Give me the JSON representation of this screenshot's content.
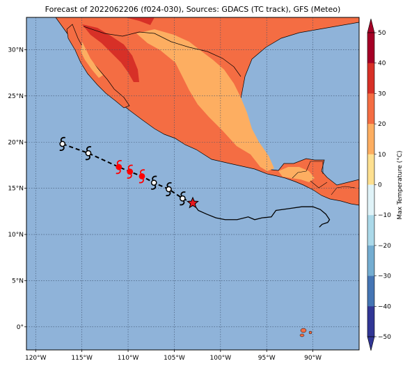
{
  "title": "Forecast of 2022062206 (f024-030), Sources: GDACS (TC track), GFS (Meteo)",
  "x_ticks": [
    "120°W",
    "115°W",
    "110°W",
    "105°W",
    "100°W",
    "95°W",
    "90°W"
  ],
  "y_ticks": [
    "30°N",
    "25°N",
    "20°N",
    "15°N",
    "10°N",
    "5°N",
    "0°"
  ],
  "colorbar": {
    "label": "Max Temperature (°C)",
    "ticks": [
      "50",
      "40",
      "30",
      "20",
      "10",
      "0",
      "−10",
      "−20",
      "−30",
      "−40",
      "−50"
    ],
    "colors": [
      "#a50026",
      "#d73027",
      "#f46d43",
      "#fdae61",
      "#fee090",
      "#ffffbf",
      "#e0f3f8",
      "#abd9e9",
      "#74add1",
      "#4575b4",
      "#313695"
    ]
  },
  "map": {
    "ocean_color": "#8fb3d9",
    "land_colors": {
      "hot": "#d73027",
      "warm": "#f46d43",
      "mild": "#fdae61"
    },
    "lon_range": [
      -121,
      -85
    ],
    "lat_range": [
      -2.5,
      33.5
    ]
  },
  "track": {
    "current_position": {
      "lon": -103,
      "lat": 13.4
    },
    "forecast_points": [
      {
        "lon": -117.1,
        "lat": 19.8,
        "color": "#000000"
      },
      {
        "lon": -114.3,
        "lat": 18.8,
        "color": "#000000"
      },
      {
        "lon": -111.0,
        "lat": 17.3,
        "color": "#ff0000"
      },
      {
        "lon": -109.8,
        "lat": 16.8,
        "color": "#ff0000"
      },
      {
        "lon": -108.5,
        "lat": 16.3,
        "color": "#ff0000"
      },
      {
        "lon": -107.2,
        "lat": 15.6,
        "color": "#000000"
      },
      {
        "lon": -105.6,
        "lat": 14.9,
        "color": "#000000"
      },
      {
        "lon": -104.1,
        "lat": 13.9,
        "color": "#000000"
      }
    ],
    "past_track": [
      [
        -103,
        13.4
      ],
      [
        -102.4,
        12.6
      ],
      [
        -101.5,
        12.2
      ],
      [
        -100.5,
        11.8
      ],
      [
        -99.5,
        11.6
      ],
      [
        -98.2,
        11.6
      ],
      [
        -97.0,
        11.9
      ],
      [
        -96.3,
        11.6
      ],
      [
        -95.5,
        11.8
      ],
      [
        -94.5,
        11.9
      ],
      [
        -94.0,
        12.6
      ],
      [
        -92.6,
        12.8
      ],
      [
        -91.2,
        13.0
      ],
      [
        -90.0,
        13.0
      ],
      [
        -89.2,
        12.7
      ],
      [
        -88.6,
        12.2
      ],
      [
        -88.2,
        11.6
      ],
      [
        -88.4,
        11.3
      ],
      [
        -89.0,
        11.1
      ],
      [
        -89.3,
        10.8
      ]
    ]
  }
}
